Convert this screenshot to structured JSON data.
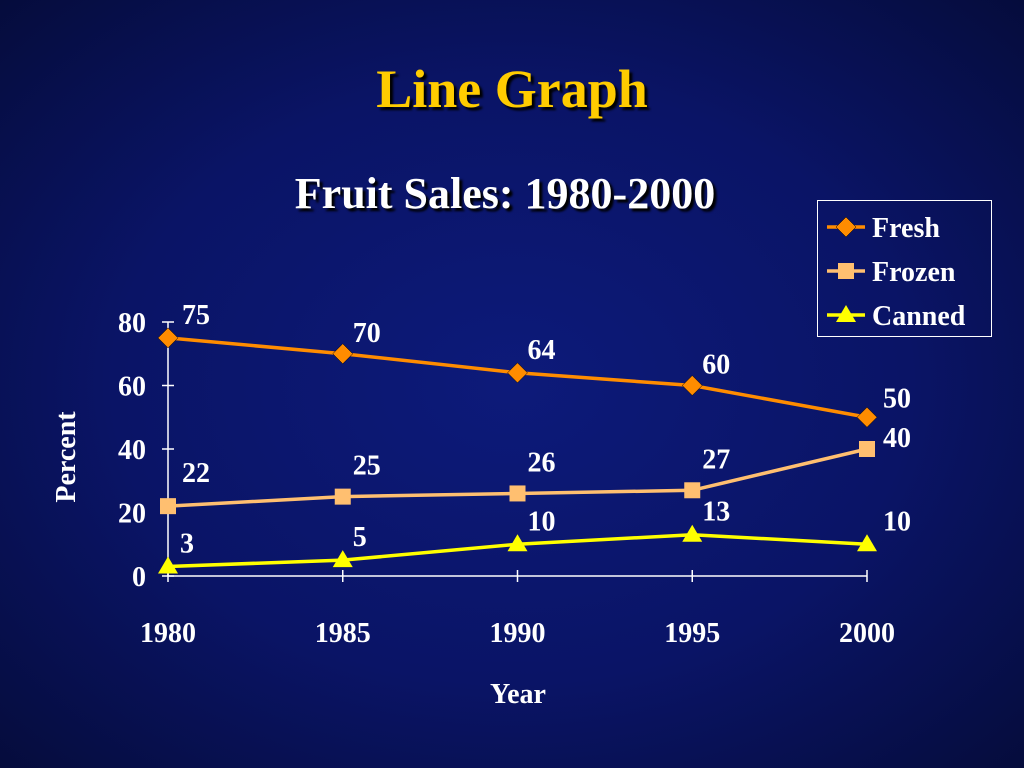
{
  "slide": {
    "title": "Line Graph"
  },
  "chart_data": {
    "type": "line",
    "title": "Fruit Sales: 1980-2000",
    "xlabel": "Year",
    "ylabel": "Percent",
    "categories": [
      "1980",
      "1985",
      "1990",
      "1995",
      "2000"
    ],
    "ylim": [
      0,
      80
    ],
    "yticks": [
      "0",
      "20",
      "40",
      "60",
      "80"
    ],
    "grid": false,
    "legend_position": "top-right",
    "series": [
      {
        "name": "Fresh",
        "values": [
          75,
          70,
          64,
          60,
          50
        ],
        "color": "#ff8c00",
        "marker": "diamond",
        "labels": [
          "75",
          "70",
          "64",
          "60",
          "50"
        ]
      },
      {
        "name": "Frozen",
        "values": [
          22,
          25,
          26,
          27,
          40
        ],
        "color": "#ffbf70",
        "marker": "square",
        "labels": [
          "22",
          "25",
          "26",
          "27",
          "40"
        ]
      },
      {
        "name": "Canned",
        "values": [
          3,
          5,
          10,
          13,
          10
        ],
        "color": "#ffff00",
        "marker": "triangle",
        "labels": [
          "3",
          "5",
          "10",
          "13",
          "10"
        ]
      }
    ]
  }
}
